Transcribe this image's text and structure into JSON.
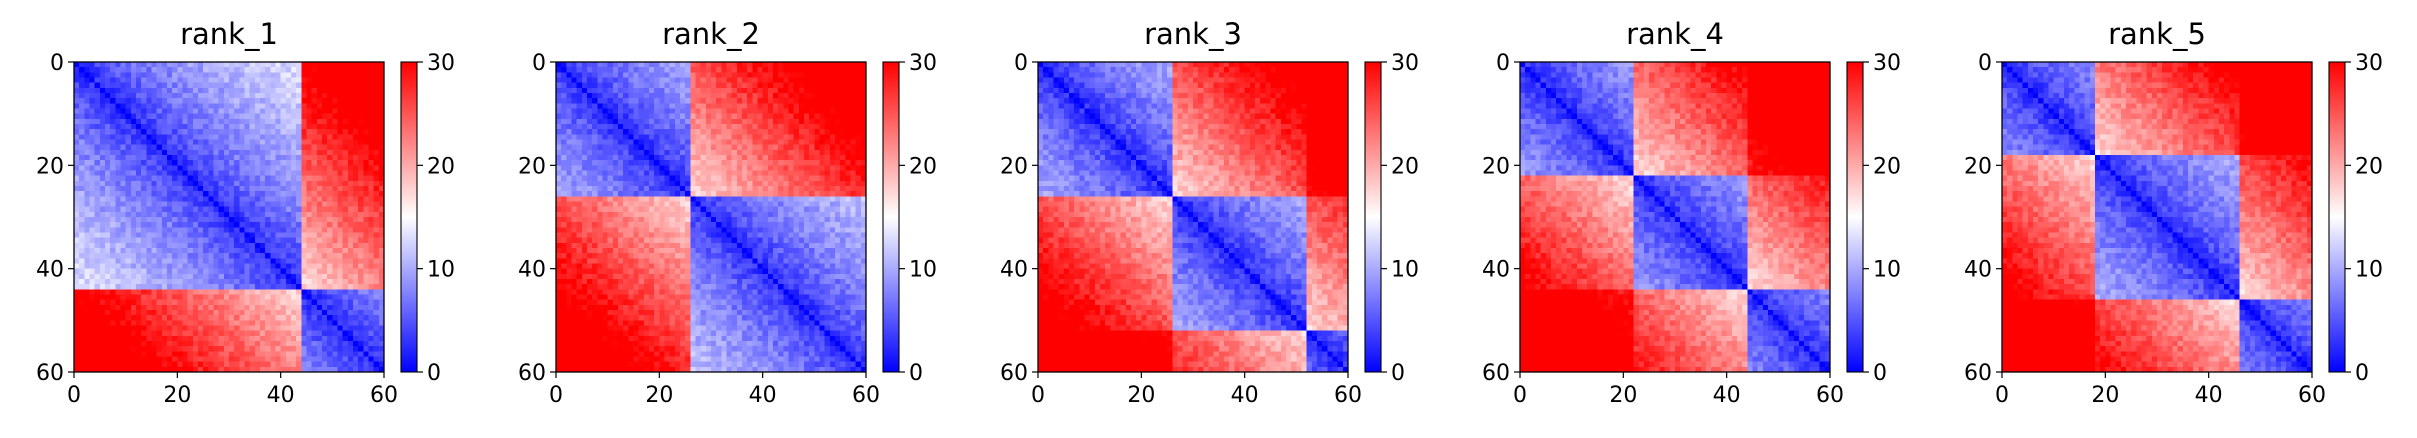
{
  "chart_data": [
    {
      "type": "heatmap",
      "title": "rank_1",
      "x_ticks": [
        "0",
        "20",
        "40",
        "60"
      ],
      "y_ticks": [
        "0",
        "20",
        "40",
        "60"
      ],
      "colorbar_ticks": [
        "0",
        "10",
        "20",
        "30"
      ],
      "colorbar_range": [
        0,
        30
      ],
      "axis_range": [
        0,
        60
      ],
      "colormap": [
        "#0000ff",
        "#ffffff",
        "#ff0000"
      ],
      "domain_breaks": [
        44
      ]
    },
    {
      "type": "heatmap",
      "title": "rank_2",
      "x_ticks": [
        "0",
        "20",
        "40",
        "60"
      ],
      "y_ticks": [
        "0",
        "20",
        "40",
        "60"
      ],
      "colorbar_ticks": [
        "0",
        "10",
        "20",
        "30"
      ],
      "colorbar_range": [
        0,
        30
      ],
      "axis_range": [
        0,
        60
      ],
      "colormap": [
        "#0000ff",
        "#ffffff",
        "#ff0000"
      ],
      "domain_breaks": [
        26
      ]
    },
    {
      "type": "heatmap",
      "title": "rank_3",
      "x_ticks": [
        "0",
        "20",
        "40",
        "60"
      ],
      "y_ticks": [
        "0",
        "20",
        "40",
        "60"
      ],
      "colorbar_ticks": [
        "0",
        "10",
        "20",
        "30"
      ],
      "colorbar_range": [
        0,
        30
      ],
      "axis_range": [
        0,
        60
      ],
      "colormap": [
        "#0000ff",
        "#ffffff",
        "#ff0000"
      ],
      "domain_breaks": [
        26,
        52
      ]
    },
    {
      "type": "heatmap",
      "title": "rank_4",
      "x_ticks": [
        "0",
        "20",
        "40",
        "60"
      ],
      "y_ticks": [
        "0",
        "20",
        "40",
        "60"
      ],
      "colorbar_ticks": [
        "0",
        "10",
        "20",
        "30"
      ],
      "colorbar_range": [
        0,
        30
      ],
      "axis_range": [
        0,
        60
      ],
      "colormap": [
        "#0000ff",
        "#ffffff",
        "#ff0000"
      ],
      "domain_breaks": [
        22,
        44
      ]
    },
    {
      "type": "heatmap",
      "title": "rank_5",
      "x_ticks": [
        "0",
        "20",
        "40",
        "60"
      ],
      "y_ticks": [
        "0",
        "20",
        "40",
        "60"
      ],
      "colorbar_ticks": [
        "0",
        "10",
        "20",
        "30"
      ],
      "colorbar_range": [
        0,
        30
      ],
      "axis_range": [
        0,
        60
      ],
      "colormap": [
        "#0000ff",
        "#ffffff",
        "#ff0000"
      ],
      "domain_breaks": [
        18,
        46
      ]
    }
  ]
}
